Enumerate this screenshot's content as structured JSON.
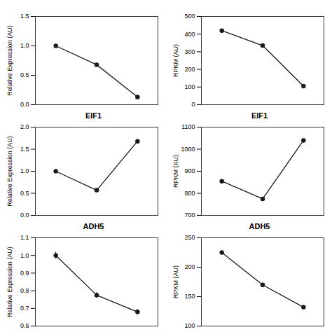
{
  "chart_data": [
    {
      "type": "line",
      "ylabel": "Relative Expression (AU)",
      "x": [
        1,
        2,
        3
      ],
      "values": [
        1.0,
        0.68,
        0.13
      ],
      "yerr": [
        0.03,
        0.03,
        0.02
      ],
      "xlim": [
        0.5,
        3.5
      ],
      "xticks": [],
      "ylim": [
        0.0,
        1.5
      ],
      "yticks": [
        {
          "value": 0.0,
          "label": "0.0"
        },
        0.5,
        {
          "value": 1.0,
          "label": "1.0"
        },
        1.5
      ],
      "tick_labels": "y",
      "marker": "o",
      "color": "#1a1a1a"
    },
    {
      "type": "line",
      "ylabel": "RPKM (AU)",
      "x": [
        1,
        2,
        3
      ],
      "values": [
        420,
        335,
        105
      ],
      "xlim": [
        0.5,
        3.5
      ],
      "xticks": [],
      "ylim": [
        0,
        500
      ],
      "yticks": [
        0,
        100,
        200,
        300,
        400,
        500
      ],
      "tick_labels": "y",
      "marker": "o",
      "color": "#1a1a1a"
    },
    {
      "type": "line",
      "title": "EIF1",
      "ylabel": "Relative Expression (AU)",
      "x": [
        1,
        2,
        3
      ],
      "values": [
        1.0,
        0.57,
        1.68
      ],
      "yerr": [
        0.04,
        0.03,
        0.04
      ],
      "xlim": [
        0.5,
        3.5
      ],
      "xticks": [],
      "ylim": [
        0.0,
        2.0
      ],
      "yticks": [
        {
          "value": 0.0,
          "label": "0.0"
        },
        0.5,
        {
          "value": 1.0,
          "label": "1.0"
        },
        1.5,
        {
          "value": 2.0,
          "label": "2.0"
        }
      ],
      "tick_labels": "y",
      "marker": "o",
      "color": "#1a1a1a"
    },
    {
      "type": "line",
      "title": "EIF1",
      "ylabel": "RPKM (AU)",
      "x": [
        1,
        2,
        3
      ],
      "values": [
        855,
        775,
        1040
      ],
      "xlim": [
        0.5,
        3.5
      ],
      "xticks": [],
      "ylim": [
        700,
        1100
      ],
      "yticks": [
        700,
        800,
        900,
        1000,
        1100
      ],
      "tick_labels": "y",
      "marker": "o",
      "color": "#1a1a1a"
    },
    {
      "type": "line",
      "title": "ADH5",
      "ylabel": "Relative Expression (AU)",
      "x": [
        1,
        2,
        3
      ],
      "values": [
        1.0,
        0.775,
        0.68
      ],
      "yerr": [
        0.02,
        0.015,
        0.015
      ],
      "xlim": [
        0.5,
        3.5
      ],
      "xticks": [],
      "ylim": [
        0.6,
        1.1
      ],
      "yticks": [
        0.6,
        0.7,
        0.8,
        0.9,
        {
          "value": 1.0,
          "label": "1.0"
        },
        1.1
      ],
      "tick_labels": "y",
      "marker": "o",
      "color": "#1a1a1a"
    },
    {
      "type": "line",
      "title": "ADH5",
      "ylabel": "RPKM (AU)",
      "x": [
        1,
        2,
        3
      ],
      "values": [
        225,
        170,
        132
      ],
      "xlim": [
        0.5,
        3.5
      ],
      "xticks": [],
      "ylim": [
        100,
        250
      ],
      "yticks": [
        100,
        150,
        200,
        250
      ],
      "tick_labels": "y",
      "marker": "o",
      "color": "#1a1a1a"
    }
  ]
}
